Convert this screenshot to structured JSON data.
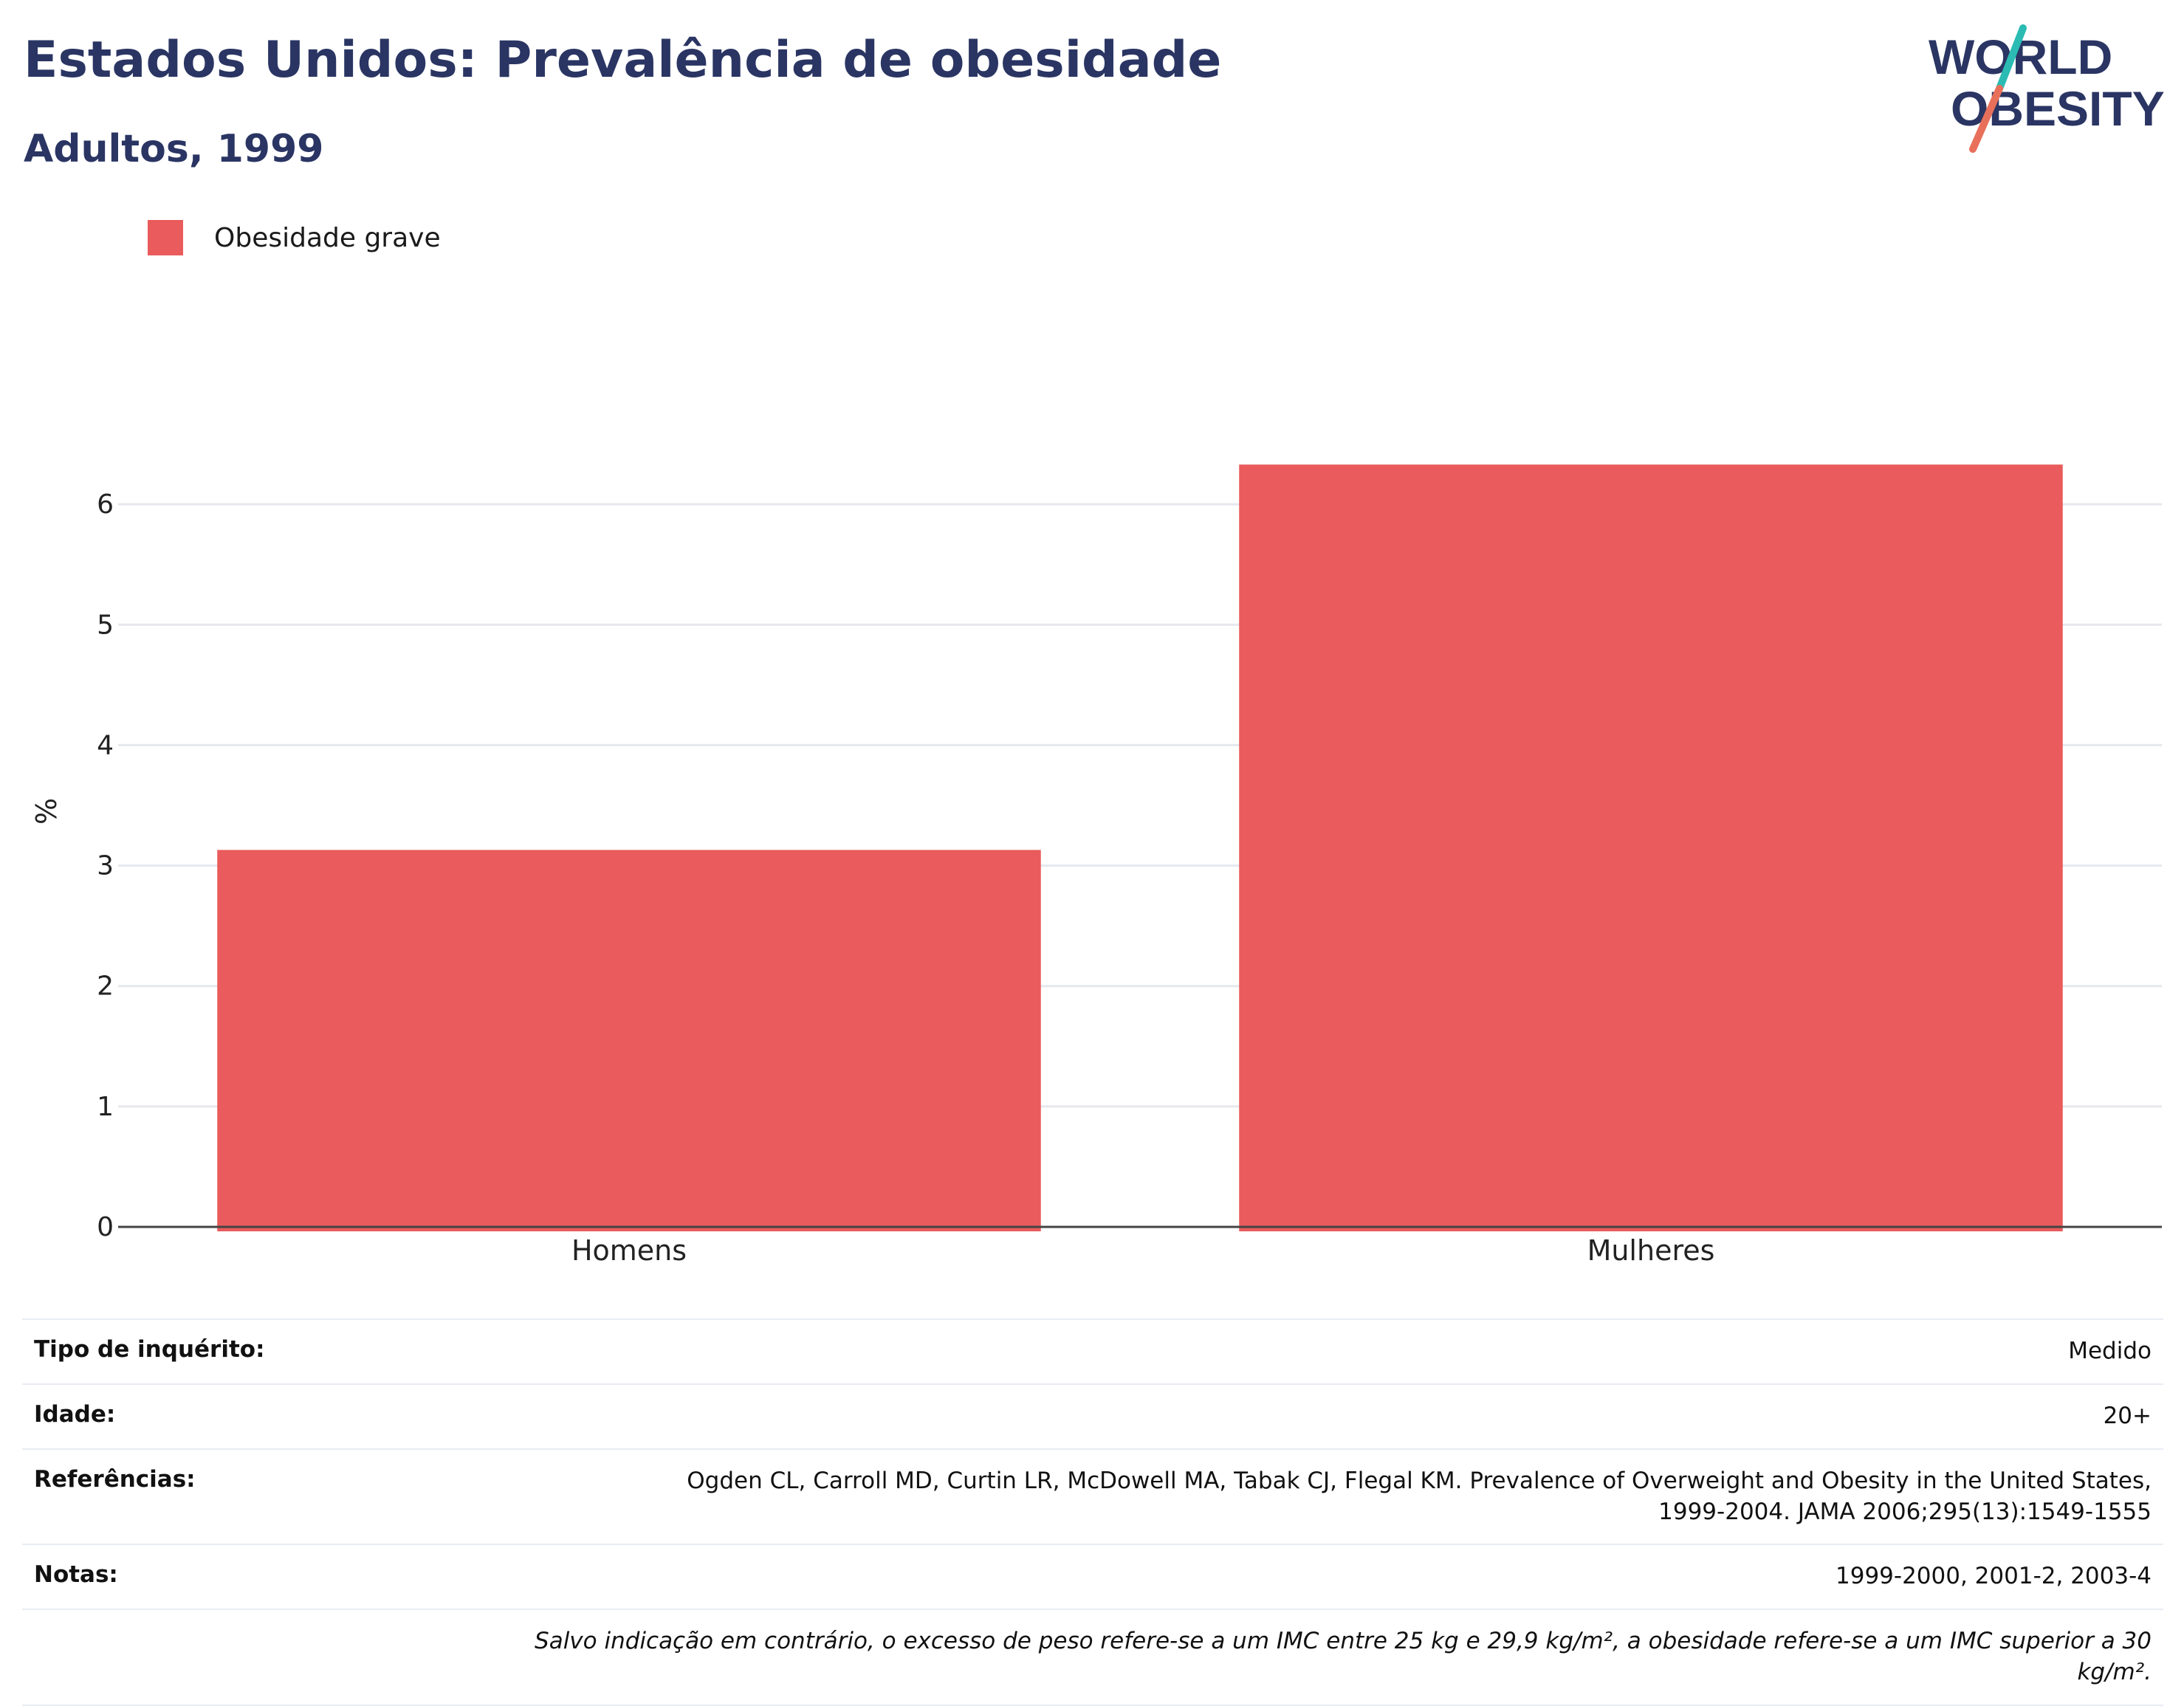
{
  "header": {
    "title": "Estados Unidos: Prevalência de obesidade",
    "subtitle": "Adultos, 1999"
  },
  "logo": {
    "line1": "WORLD",
    "line2": "OBESITY",
    "colors": {
      "text": "#2a3563",
      "slash_top": "#2bbbb3",
      "slash_bottom": "#e8705a"
    }
  },
  "legend": {
    "label": "Obesidade grave",
    "color": "#e95b5c"
  },
  "chart_data": {
    "type": "bar",
    "categories": [
      "Homens",
      "Mulheres"
    ],
    "series": [
      {
        "name": "Obesidade grave",
        "values": [
          3.13,
          6.33
        ],
        "color": "#e95b5c"
      }
    ],
    "ylabel": "%",
    "ylim": [
      0,
      7
    ],
    "yticks": [
      0,
      1,
      2,
      3,
      4,
      5,
      6
    ],
    "grid": true,
    "legend_position": "top-left"
  },
  "info": {
    "rows": [
      {
        "key": "Tipo de inquérito:",
        "value": "Medido"
      },
      {
        "key": "Idade:",
        "value": "20+"
      },
      {
        "key": "Referências:",
        "value": "Ogden CL, Carroll MD, Curtin LR, McDowell MA, Tabak CJ, Flegal KM. Prevalence of Overweight and Obesity in the United States, 1999-2004. JAMA 2006;295(13):1549-1555"
      },
      {
        "key": "Notas:",
        "value": "1999-2000, 2001-2, 2003-4"
      }
    ],
    "footnote": "Salvo indicação em contrário, o excesso de peso refere-se a um IMC entre 25 kg e 29,9 kg/m², a obesidade refere-se a um IMC superior a 30 kg/m²."
  }
}
